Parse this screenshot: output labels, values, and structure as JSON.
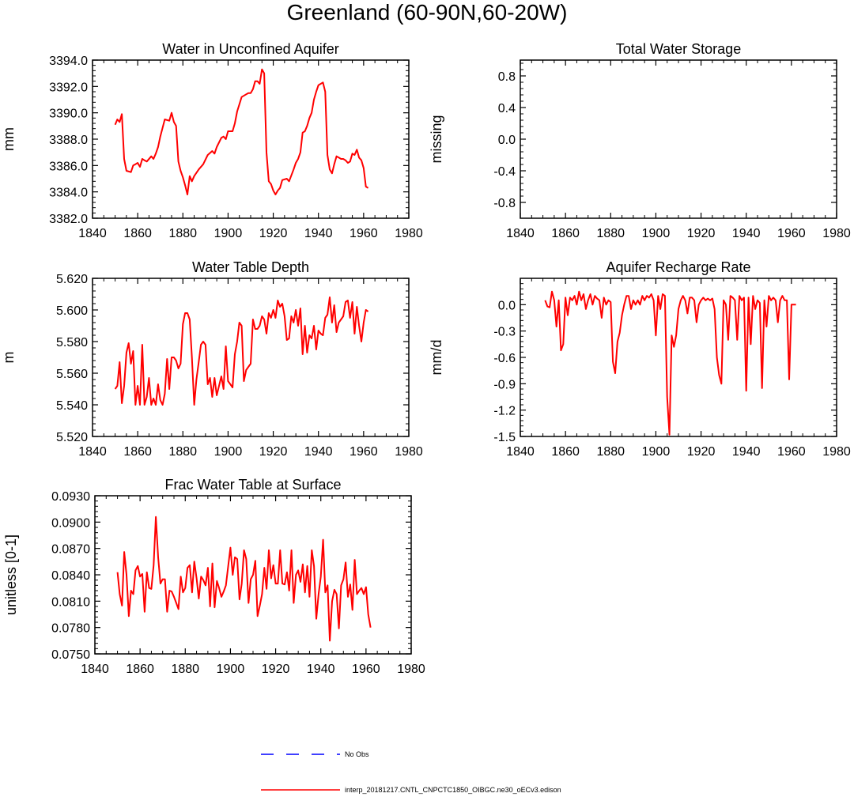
{
  "title": "Greenland (60-90N,60-20W)",
  "colors": {
    "model": "#ff0000",
    "obs": "#0000ff",
    "axis": "#000000"
  },
  "legend": {
    "obs_label": "No Obs",
    "model_label": "interp_20181217.CNTL_CNPCTC1850_OIBGC.ne30_oECv3.edison"
  },
  "chart_data": [
    {
      "id": "water_unconfined",
      "type": "line",
      "title": "Water in Unconfined Aquifer",
      "ylabel": "mm",
      "xlim": [
        1840,
        1980
      ],
      "ylim": [
        3382.0,
        3394.0
      ],
      "xticks": [
        1840,
        1860,
        1880,
        1900,
        1920,
        1940,
        1960,
        1980
      ],
      "yticks": [
        3382.0,
        3384.0,
        3386.0,
        3388.0,
        3390.0,
        3392.0,
        3394.0
      ],
      "ytick_labels": [
        "3382.0",
        "3384.0",
        "3386.0",
        "3388.0",
        "3390.0",
        "3392.0",
        "3394.0"
      ],
      "x": [
        1850,
        1851,
        1852,
        1853,
        1854,
        1855,
        1857,
        1858,
        1859,
        1860,
        1861,
        1862,
        1863,
        1864,
        1866,
        1867,
        1868,
        1869,
        1870,
        1872,
        1874,
        1875,
        1876,
        1877,
        1878,
        1879,
        1880,
        1881,
        1882,
        1883,
        1884,
        1885,
        1887,
        1889,
        1891,
        1893,
        1894,
        1895,
        1897,
        1898,
        1899,
        1900,
        1902,
        1903,
        1904,
        1906,
        1908,
        1909,
        1910,
        1911,
        1912,
        1913,
        1914,
        1915,
        1916,
        1917,
        1918,
        1919,
        1920,
        1921,
        1922,
        1923,
        1924,
        1926,
        1927,
        1929,
        1930,
        1931,
        1932,
        1933,
        1934,
        1935,
        1936,
        1937,
        1938,
        1939,
        1940,
        1941,
        1942,
        1943,
        1944,
        1945,
        1946,
        1947,
        1948,
        1949,
        1950,
        1951,
        1952,
        1953,
        1954,
        1955,
        1956,
        1957,
        1958,
        1959,
        1960,
        1961,
        1962
      ],
      "series": [
        {
          "name": "model",
          "values": [
            3389.1,
            3389.5,
            3389.3,
            3389.9,
            3386.5,
            3385.6,
            3385.5,
            3386.0,
            3386.1,
            3386.2,
            3385.9,
            3386.5,
            3386.4,
            3386.3,
            3386.7,
            3386.5,
            3386.9,
            3387.4,
            3388.2,
            3389.5,
            3389.4,
            3390.0,
            3389.3,
            3389.0,
            3386.3,
            3385.6,
            3385.1,
            3384.5,
            3383.8,
            3385.2,
            3384.8,
            3385.2,
            3385.7,
            3386.1,
            3386.8,
            3387.1,
            3386.9,
            3387.4,
            3388.1,
            3388.2,
            3388.0,
            3388.6,
            3388.6,
            3389.2,
            3390.1,
            3391.2,
            3391.4,
            3391.5,
            3391.5,
            3391.8,
            3392.4,
            3392.4,
            3392.2,
            3393.3,
            3393.0,
            3387.0,
            3384.8,
            3384.6,
            3384.1,
            3383.8,
            3384.1,
            3384.3,
            3384.9,
            3385.0,
            3384.8,
            3385.7,
            3386.2,
            3386.5,
            3387.0,
            3388.5,
            3388.6,
            3389.0,
            3389.6,
            3390.0,
            3391.0,
            3391.6,
            3392.1,
            3392.2,
            3392.3,
            3391.6,
            3386.8,
            3385.7,
            3385.4,
            3386.1,
            3386.7,
            3386.6,
            3386.5,
            3386.5,
            3386.4,
            3386.2,
            3386.3,
            3386.9,
            3386.8,
            3387.2,
            3386.6,
            3386.4,
            3385.8,
            3384.4,
            3384.3
          ]
        }
      ]
    },
    {
      "id": "total_water_storage",
      "type": "line",
      "title": "Total Water Storage",
      "ylabel": "missing",
      "xlim": [
        1840,
        1980
      ],
      "ylim": [
        -1.0,
        1.0
      ],
      "xticks": [
        1840,
        1860,
        1880,
        1900,
        1920,
        1940,
        1960,
        1980
      ],
      "yticks": [
        -0.8,
        -0.4,
        0.0,
        0.4,
        0.8
      ],
      "ytick_labels": [
        "-0.8",
        "-0.4",
        "0.0",
        "0.4",
        "0.8"
      ],
      "x": [],
      "series": []
    },
    {
      "id": "water_table_depth",
      "type": "line",
      "title": "Water Table Depth",
      "ylabel": "m",
      "xlim": [
        1840,
        1980
      ],
      "ylim": [
        5.52,
        5.62
      ],
      "xticks": [
        1840,
        1860,
        1880,
        1900,
        1920,
        1940,
        1960,
        1980
      ],
      "yticks": [
        5.52,
        5.54,
        5.56,
        5.58,
        5.6,
        5.62
      ],
      "ytick_labels": [
        "5.520",
        "5.540",
        "5.560",
        "5.580",
        "5.600",
        "5.620"
      ],
      "x": [
        1850,
        1851,
        1852,
        1853,
        1854,
        1855,
        1856,
        1857,
        1858,
        1859,
        1860,
        1861,
        1862,
        1863,
        1864,
        1865,
        1866,
        1867,
        1868,
        1869,
        1870,
        1871,
        1872,
        1873,
        1874,
        1875,
        1876,
        1877,
        1878,
        1879,
        1880,
        1881,
        1882,
        1883,
        1884,
        1885,
        1886,
        1887,
        1888,
        1889,
        1890,
        1891,
        1892,
        1893,
        1894,
        1895,
        1896,
        1897,
        1898,
        1899,
        1900,
        1901,
        1902,
        1903,
        1904,
        1905,
        1906,
        1907,
        1908,
        1909,
        1910,
        1911,
        1912,
        1913,
        1914,
        1915,
        1916,
        1917,
        1918,
        1919,
        1920,
        1921,
        1922,
        1923,
        1924,
        1925,
        1926,
        1927,
        1928,
        1929,
        1930,
        1931,
        1932,
        1933,
        1934,
        1935,
        1936,
        1937,
        1938,
        1939,
        1940,
        1941,
        1942,
        1943,
        1944,
        1945,
        1946,
        1947,
        1948,
        1949,
        1950,
        1951,
        1952,
        1953,
        1954,
        1955,
        1956,
        1957,
        1958,
        1959,
        1960,
        1961,
        1962
      ],
      "series": [
        {
          "name": "model",
          "values": [
            5.55,
            5.552,
            5.567,
            5.541,
            5.552,
            5.573,
            5.579,
            5.566,
            5.574,
            5.54,
            5.552,
            5.54,
            5.578,
            5.54,
            5.545,
            5.557,
            5.54,
            5.544,
            5.54,
            5.553,
            5.543,
            5.54,
            5.547,
            5.569,
            5.55,
            5.57,
            5.57,
            5.568,
            5.563,
            5.566,
            5.591,
            5.598,
            5.598,
            5.594,
            5.57,
            5.54,
            5.556,
            5.567,
            5.578,
            5.58,
            5.578,
            5.553,
            5.557,
            5.545,
            5.557,
            5.546,
            5.552,
            5.558,
            5.55,
            5.577,
            5.555,
            5.553,
            5.551,
            5.572,
            5.58,
            5.592,
            5.59,
            5.555,
            5.562,
            5.564,
            5.566,
            5.594,
            5.588,
            5.588,
            5.59,
            5.596,
            5.594,
            5.585,
            5.598,
            5.595,
            5.6,
            5.595,
            5.606,
            5.602,
            5.604,
            5.596,
            5.581,
            5.582,
            5.596,
            5.592,
            5.6,
            5.59,
            5.601,
            5.572,
            5.59,
            5.573,
            5.584,
            5.582,
            5.59,
            5.575,
            5.587,
            5.585,
            5.584,
            5.595,
            5.597,
            5.608,
            5.592,
            5.603,
            5.586,
            5.592,
            5.594,
            5.596,
            5.605,
            5.606,
            5.595,
            5.605,
            5.585,
            5.602,
            5.59,
            5.58,
            5.592,
            5.6,
            5.599
          ]
        }
      ]
    },
    {
      "id": "aquifer_recharge",
      "type": "line",
      "title": "Aquifer Recharge Rate",
      "ylabel": "mm/d",
      "xlim": [
        1840,
        1980
      ],
      "ylim": [
        -1.5,
        0.3
      ],
      "xticks": [
        1840,
        1860,
        1880,
        1900,
        1920,
        1940,
        1960,
        1980
      ],
      "yticks": [
        -1.5,
        -1.2,
        -0.9,
        -0.6,
        -0.3,
        0.0
      ],
      "ytick_labels": [
        "-1.5",
        "-1.2",
        "-0.9",
        "-0.6",
        "-0.3",
        "0.0"
      ],
      "x": [
        1851,
        1852,
        1853,
        1854,
        1855,
        1856,
        1857,
        1858,
        1859,
        1860,
        1861,
        1862,
        1863,
        1864,
        1865,
        1866,
        1867,
        1868,
        1869,
        1870,
        1871,
        1872,
        1873,
        1874,
        1875,
        1876,
        1877,
        1878,
        1879,
        1880,
        1881,
        1882,
        1883,
        1884,
        1885,
        1886,
        1887,
        1888,
        1889,
        1890,
        1891,
        1892,
        1893,
        1894,
        1895,
        1896,
        1897,
        1898,
        1899,
        1900,
        1901,
        1902,
        1903,
        1904,
        1905,
        1906,
        1907,
        1908,
        1909,
        1910,
        1911,
        1912,
        1913,
        1914,
        1915,
        1916,
        1917,
        1918,
        1919,
        1920,
        1921,
        1922,
        1923,
        1924,
        1925,
        1926,
        1927,
        1928,
        1929,
        1930,
        1931,
        1932,
        1933,
        1934,
        1935,
        1936,
        1937,
        1938,
        1939,
        1940,
        1941,
        1942,
        1943,
        1944,
        1945,
        1946,
        1947,
        1948,
        1949,
        1950,
        1951,
        1952,
        1953,
        1954,
        1955,
        1956,
        1957,
        1958,
        1959,
        1960,
        1961,
        1962
      ],
      "series": [
        {
          "name": "model",
          "values": [
            0.05,
            -0.02,
            -0.03,
            0.15,
            0.05,
            -0.25,
            0.05,
            -0.52,
            -0.45,
            0.08,
            -0.12,
            0.08,
            0.05,
            0.1,
            0.0,
            0.15,
            0.05,
            0.12,
            -0.05,
            0.05,
            0.12,
            0.0,
            0.1,
            0.07,
            0.05,
            -0.15,
            0.08,
            0.0,
            0.05,
            0.03,
            -0.65,
            -0.78,
            -0.42,
            -0.32,
            -0.12,
            0.0,
            0.1,
            0.1,
            -0.05,
            0.05,
            0.0,
            0.05,
            0.0,
            0.1,
            0.05,
            0.1,
            0.08,
            0.12,
            0.05,
            -0.35,
            0.1,
            -0.05,
            0.12,
            0.1,
            -1.05,
            -1.48,
            -0.35,
            -0.48,
            -0.35,
            -0.05,
            0.05,
            0.1,
            0.05,
            -0.1,
            0.08,
            0.08,
            0.05,
            -0.2,
            0.0,
            0.05,
            0.08,
            0.05,
            0.07,
            0.05,
            0.07,
            -0.05,
            -0.6,
            -0.8,
            -0.9,
            0.05,
            0.0,
            -0.4,
            0.1,
            0.08,
            0.05,
            -0.4,
            0.1,
            0.05,
            0.08,
            -0.98,
            0.08,
            -0.45,
            0.1,
            -0.05,
            0.05,
            0.02,
            -0.95,
            0.05,
            -0.25,
            0.1,
            0.05,
            0.08,
            0.05,
            -0.2,
            0.05,
            0.1,
            0.05,
            0.05,
            -0.85,
            0.0,
            0.0,
            0.0
          ]
        }
      ]
    },
    {
      "id": "frac_water_table",
      "type": "line",
      "title": "Frac Water Table at Surface",
      "ylabel": "unitless [0-1]",
      "xlim": [
        1840,
        1980
      ],
      "ylim": [
        0.075,
        0.093
      ],
      "xticks": [
        1840,
        1860,
        1880,
        1900,
        1920,
        1940,
        1960,
        1980
      ],
      "yticks": [
        0.075,
        0.078,
        0.081,
        0.084,
        0.087,
        0.09,
        0.093
      ],
      "ytick_labels": [
        "0.0750",
        "0.0780",
        "0.0810",
        "0.0840",
        "0.0870",
        "0.0900",
        "0.0930"
      ],
      "x": [
        1850,
        1851,
        1852,
        1853,
        1854,
        1855,
        1856,
        1857,
        1858,
        1859,
        1860,
        1861,
        1862,
        1863,
        1864,
        1865,
        1866,
        1867,
        1868,
        1869,
        1870,
        1871,
        1872,
        1873,
        1874,
        1875,
        1876,
        1877,
        1878,
        1879,
        1880,
        1881,
        1882,
        1883,
        1884,
        1885,
        1886,
        1887,
        1888,
        1889,
        1890,
        1891,
        1892,
        1893,
        1894,
        1895,
        1896,
        1897,
        1898,
        1899,
        1900,
        1901,
        1902,
        1903,
        1904,
        1905,
        1906,
        1907,
        1908,
        1909,
        1910,
        1911,
        1912,
        1913,
        1914,
        1915,
        1916,
        1917,
        1918,
        1919,
        1920,
        1921,
        1922,
        1923,
        1924,
        1925,
        1926,
        1927,
        1928,
        1929,
        1930,
        1931,
        1932,
        1933,
        1934,
        1935,
        1936,
        1937,
        1938,
        1939,
        1940,
        1941,
        1942,
        1943,
        1944,
        1945,
        1946,
        1947,
        1948,
        1949,
        1950,
        1951,
        1952,
        1953,
        1954,
        1955,
        1956,
        1957,
        1958,
        1959,
        1960,
        1961,
        1962
      ],
      "series": [
        {
          "name": "model",
          "values": [
            0.0843,
            0.0818,
            0.0805,
            0.0866,
            0.084,
            0.0793,
            0.0822,
            0.0818,
            0.0845,
            0.085,
            0.0838,
            0.0841,
            0.0798,
            0.0843,
            0.0825,
            0.0824,
            0.0851,
            0.0906,
            0.086,
            0.083,
            0.0835,
            0.0835,
            0.0798,
            0.0822,
            0.0821,
            0.0815,
            0.0808,
            0.0801,
            0.0838,
            0.082,
            0.0825,
            0.0848,
            0.0851,
            0.082,
            0.0855,
            0.0836,
            0.0813,
            0.0838,
            0.0834,
            0.0828,
            0.0848,
            0.0804,
            0.0853,
            0.0803,
            0.0833,
            0.0825,
            0.0815,
            0.0821,
            0.0828,
            0.085,
            0.0871,
            0.084,
            0.086,
            0.0858,
            0.0812,
            0.083,
            0.0868,
            0.0858,
            0.0808,
            0.0835,
            0.084,
            0.0856,
            0.0793,
            0.0805,
            0.0818,
            0.0848,
            0.0824,
            0.0868,
            0.0836,
            0.0851,
            0.083,
            0.083,
            0.0868,
            0.083,
            0.0829,
            0.0843,
            0.0822,
            0.0868,
            0.0808,
            0.084,
            0.0845,
            0.0832,
            0.0852,
            0.082,
            0.085,
            0.0815,
            0.0868,
            0.085,
            0.079,
            0.0818,
            0.0838,
            0.088,
            0.082,
            0.0828,
            0.0765,
            0.081,
            0.0823,
            0.0818,
            0.0779,
            0.0828,
            0.0835,
            0.0854,
            0.0815,
            0.0829,
            0.08,
            0.0857,
            0.0818,
            0.0822,
            0.0825,
            0.0818,
            0.0826,
            0.0795,
            0.078
          ]
        }
      ]
    }
  ]
}
